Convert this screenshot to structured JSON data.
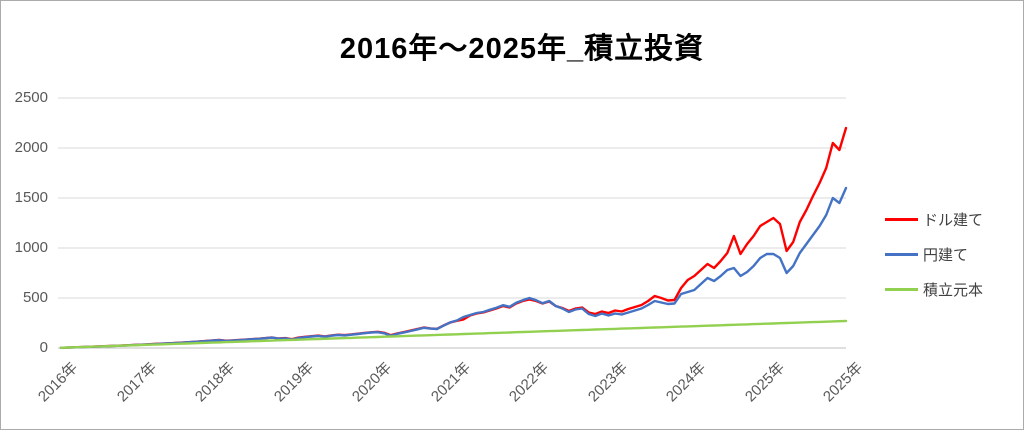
{
  "title": "2016年～2025年_積立投資",
  "colors": {
    "grid": "#D9D9D9",
    "axis_line": "#BFBFBF",
    "tick_text": "#595959",
    "legend_text": "#404040",
    "border": "#ABABAB",
    "background": "#FFFFFF"
  },
  "y_axis": {
    "ticks": [
      {
        "label": "2500",
        "value": 2500
      },
      {
        "label": "2000",
        "value": 2000
      },
      {
        "label": "1500",
        "value": 1500
      },
      {
        "label": "1000",
        "value": 1000
      },
      {
        "label": "500",
        "value": 500
      },
      {
        "label": "0",
        "value": 0
      }
    ]
  },
  "x_axis": {
    "labels": [
      "2016年",
      "2017年",
      "2018年",
      "2019年",
      "2020年",
      "2021年",
      "2022年",
      "2023年",
      "2024年",
      "2025年",
      "2025年"
    ]
  },
  "legend": {
    "items": [
      {
        "label": "ドル建て",
        "color": "#FF0000"
      },
      {
        "label": "円建て",
        "color": "#4472C4"
      },
      {
        "label": "積立元本",
        "color": "#92D050"
      }
    ]
  },
  "chart_data": {
    "type": "line",
    "title": "2016年～2025年_積立投資",
    "x_unit": "month",
    "x_range": "2016-01 to 2025-12, monthly, 120 points",
    "x_tick_labels": [
      "2016年",
      "2017年",
      "2018年",
      "2019年",
      "2020年",
      "2021年",
      "2022年",
      "2023年",
      "2024年",
      "2025年",
      "2025年"
    ],
    "ylim": [
      0,
      2500
    ],
    "grid": "horizontal",
    "legend_position": "right",
    "series": [
      {
        "name": "ドル建て",
        "color": "#FF0000",
        "values": [
          2,
          4,
          7,
          9,
          12,
          14,
          17,
          19,
          22,
          24,
          27,
          30,
          33,
          36,
          40,
          43,
          46,
          49,
          53,
          57,
          61,
          65,
          70,
          75,
          80,
          73,
          76,
          80,
          84,
          89,
          93,
          99,
          105,
          95,
          99,
          88,
          104,
          112,
          118,
          124,
          116,
          126,
          133,
          129,
          136,
          143,
          150,
          157,
          162,
          152,
          128,
          146,
          160,
          174,
          190,
          205,
          196,
          192,
          225,
          255,
          272,
          285,
          325,
          345,
          355,
          375,
          395,
          420,
          405,
          445,
          470,
          485,
          470,
          445,
          465,
          420,
          400,
          370,
          395,
          405,
          355,
          340,
          365,
          350,
          375,
          365,
          390,
          410,
          430,
          470,
          520,
          500,
          475,
          480,
          600,
          680,
          720,
          780,
          840,
          800,
          870,
          950,
          1120,
          940,
          1040,
          1120,
          1220,
          1260,
          1300,
          1240,
          970,
          1060,
          1260,
          1380,
          1520,
          1650,
          1800,
          2050,
          1980,
          2200
        ]
      },
      {
        "name": "円建て",
        "color": "#4472C4",
        "values": [
          2,
          4,
          6,
          8,
          11,
          13,
          16,
          18,
          21,
          23,
          26,
          29,
          32,
          35,
          38,
          42,
          45,
          48,
          52,
          56,
          60,
          64,
          69,
          74,
          79,
          71,
          74,
          78,
          83,
          88,
          92,
          98,
          104,
          93,
          97,
          85,
          100,
          108,
          115,
          121,
          113,
          123,
          130,
          126,
          133,
          140,
          148,
          155,
          158,
          147,
          122,
          142,
          156,
          170,
          186,
          202,
          194,
          190,
          224,
          256,
          275,
          310,
          330,
          350,
          360,
          382,
          402,
          428,
          412,
          452,
          478,
          500,
          478,
          448,
          470,
          420,
          395,
          360,
          385,
          395,
          340,
          320,
          345,
          325,
          345,
          335,
          355,
          375,
          395,
          430,
          470,
          455,
          440,
          445,
          540,
          560,
          580,
          640,
          700,
          670,
          720,
          780,
          800,
          720,
          760,
          820,
          900,
          940,
          940,
          900,
          750,
          820,
          950,
          1040,
          1130,
          1220,
          1330,
          1500,
          1450,
          1600
        ]
      },
      {
        "name": "積立元本",
        "color": "#92D050",
        "values": [
          2,
          5,
          7,
          9,
          11,
          14,
          16,
          18,
          20,
          23,
          25,
          27,
          29,
          32,
          34,
          36,
          38,
          41,
          43,
          45,
          47,
          50,
          52,
          54,
          56,
          59,
          61,
          63,
          65,
          68,
          70,
          72,
          74,
          77,
          79,
          81,
          83,
          86,
          88,
          90,
          92,
          95,
          97,
          99,
          101,
          104,
          106,
          108,
          110,
          113,
          115,
          117,
          119,
          122,
          124,
          126,
          128,
          131,
          133,
          135,
          137,
          140,
          142,
          144,
          146,
          149,
          151,
          153,
          155,
          158,
          160,
          162,
          164,
          167,
          169,
          171,
          173,
          176,
          178,
          180,
          182,
          185,
          187,
          189,
          191,
          194,
          196,
          198,
          200,
          203,
          205,
          207,
          209,
          212,
          214,
          216,
          218,
          221,
          223,
          225,
          227,
          230,
          232,
          234,
          236,
          239,
          241,
          243,
          245,
          248,
          250,
          252,
          254,
          257,
          259,
          261,
          263,
          266,
          268,
          270
        ]
      }
    ]
  }
}
